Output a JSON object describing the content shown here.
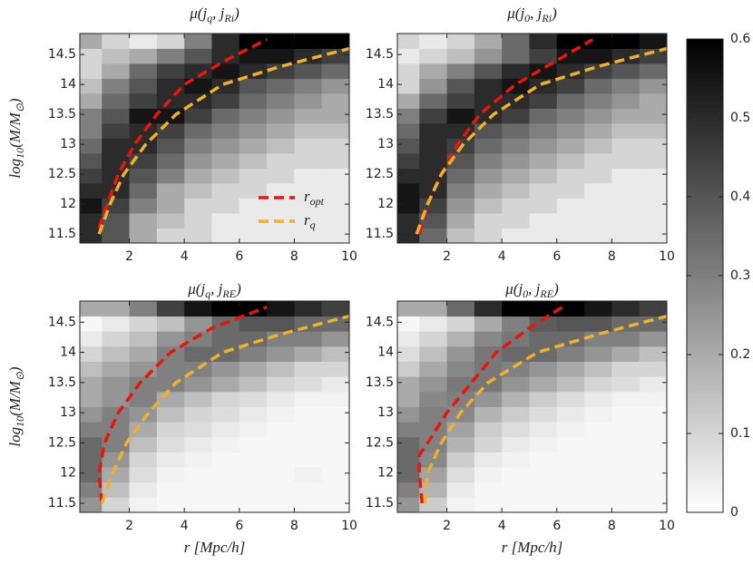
{
  "chart_data": [
    {
      "type": "heatmap",
      "title_parts": [
        "μ(j",
        "q",
        ", j",
        "Ri",
        ")"
      ],
      "ylabel_parts": [
        "log",
        "10",
        "(M/M",
        "⊙",
        ")"
      ],
      "xbins": [
        0.2,
        1,
        2,
        3,
        4,
        5,
        6,
        7,
        8,
        9,
        10
      ],
      "ybins": [
        11.35,
        11.6,
        11.85,
        12.1,
        12.35,
        12.6,
        12.85,
        13.1,
        13.35,
        13.6,
        13.85,
        14.1,
        14.35,
        14.6,
        14.85
      ],
      "z": [
        [
          0.5,
          0.4,
          0.2,
          0.1,
          0.1,
          0.05,
          0.05,
          0.05,
          0.05,
          0.05
        ],
        [
          0.5,
          0.4,
          0.2,
          0.15,
          0.1,
          0.05,
          0.05,
          0.05,
          0.05,
          0.05
        ],
        [
          0.55,
          0.45,
          0.3,
          0.2,
          0.1,
          0.1,
          0.05,
          0.05,
          0.05,
          0.05
        ],
        [
          0.5,
          0.5,
          0.35,
          0.2,
          0.15,
          0.1,
          0.1,
          0.05,
          0.05,
          0.05
        ],
        [
          0.45,
          0.5,
          0.4,
          0.3,
          0.2,
          0.15,
          0.1,
          0.1,
          0.05,
          0.05
        ],
        [
          0.4,
          0.5,
          0.45,
          0.35,
          0.25,
          0.2,
          0.15,
          0.1,
          0.1,
          0.1
        ],
        [
          0.35,
          0.5,
          0.5,
          0.4,
          0.3,
          0.25,
          0.2,
          0.15,
          0.1,
          0.1
        ],
        [
          0.3,
          0.45,
          0.5,
          0.45,
          0.35,
          0.3,
          0.25,
          0.2,
          0.15,
          0.15
        ],
        [
          0.3,
          0.4,
          0.55,
          0.55,
          0.45,
          0.35,
          0.3,
          0.25,
          0.2,
          0.2
        ],
        [
          0.2,
          0.35,
          0.45,
          0.5,
          0.5,
          0.45,
          0.35,
          0.3,
          0.25,
          0.2
        ],
        [
          0.15,
          0.3,
          0.4,
          0.5,
          0.55,
          0.5,
          0.4,
          0.35,
          0.3,
          0.25
        ],
        [
          0.1,
          0.2,
          0.35,
          0.45,
          0.5,
          0.55,
          0.5,
          0.45,
          0.4,
          0.35
        ],
        [
          0.1,
          0.15,
          0.2,
          0.3,
          0.4,
          0.5,
          0.55,
          0.55,
          0.5,
          0.45
        ],
        [
          0.2,
          0.1,
          0.05,
          0.1,
          0.3,
          0.5,
          0.6,
          0.6,
          0.6,
          0.6
        ]
      ],
      "series": [
        {
          "name": "r",
          "subscript": "opt",
          "color": "#e8160c",
          "x": [
            0.9,
            1.2,
            1.6,
            2.2,
            3,
            4,
            5.5,
            7
          ],
          "y": [
            11.6,
            12,
            12.5,
            13,
            13.5,
            14,
            14.4,
            14.75
          ]
        },
        {
          "name": "r",
          "subscript": "q",
          "color": "#efb02c",
          "x": [
            0.9,
            1.3,
            1.8,
            2.6,
            3.7,
            5.4,
            7.5,
            10
          ],
          "y": [
            11.5,
            12,
            12.5,
            13,
            13.5,
            14,
            14.3,
            14.6
          ]
        }
      ],
      "legend": "lower right",
      "xlim": [
        0.2,
        10
      ],
      "ylim": [
        11.35,
        14.85
      ],
      "xticks": [
        2,
        4,
        6,
        8,
        10
      ],
      "yticks": [
        11.5,
        12,
        12.5,
        13,
        13.5,
        14,
        14.5
      ]
    },
    {
      "type": "heatmap",
      "title_parts": [
        "μ(j",
        "0",
        ", j",
        "Ri",
        ")"
      ],
      "xbins": [
        0.2,
        1,
        2,
        3,
        4,
        5,
        6,
        7,
        8,
        9,
        10
      ],
      "ybins": [
        11.35,
        11.6,
        11.85,
        12.1,
        12.35,
        12.6,
        12.85,
        13.1,
        13.35,
        13.6,
        13.85,
        14.1,
        14.35,
        14.6,
        14.85
      ],
      "z": [
        [
          0.5,
          0.35,
          0.15,
          0.1,
          0.05,
          0.05,
          0.05,
          0.05,
          0.05,
          0.05
        ],
        [
          0.5,
          0.4,
          0.2,
          0.1,
          0.1,
          0.05,
          0.05,
          0.05,
          0.05,
          0.05
        ],
        [
          0.55,
          0.45,
          0.25,
          0.15,
          0.1,
          0.1,
          0.05,
          0.05,
          0.05,
          0.05
        ],
        [
          0.55,
          0.5,
          0.3,
          0.2,
          0.15,
          0.1,
          0.1,
          0.05,
          0.05,
          0.05
        ],
        [
          0.5,
          0.5,
          0.35,
          0.25,
          0.2,
          0.15,
          0.1,
          0.1,
          0.05,
          0.05
        ],
        [
          0.45,
          0.5,
          0.4,
          0.3,
          0.25,
          0.2,
          0.15,
          0.1,
          0.1,
          0.1
        ],
        [
          0.4,
          0.5,
          0.45,
          0.35,
          0.3,
          0.25,
          0.2,
          0.15,
          0.1,
          0.1
        ],
        [
          0.35,
          0.5,
          0.5,
          0.4,
          0.35,
          0.3,
          0.25,
          0.2,
          0.15,
          0.15
        ],
        [
          0.3,
          0.45,
          0.55,
          0.5,
          0.45,
          0.35,
          0.3,
          0.25,
          0.2,
          0.2
        ],
        [
          0.2,
          0.35,
          0.45,
          0.5,
          0.5,
          0.45,
          0.35,
          0.3,
          0.25,
          0.2
        ],
        [
          0.1,
          0.25,
          0.4,
          0.5,
          0.55,
          0.5,
          0.45,
          0.35,
          0.3,
          0.25
        ],
        [
          0.1,
          0.2,
          0.3,
          0.4,
          0.5,
          0.55,
          0.5,
          0.45,
          0.4,
          0.35
        ],
        [
          0.05,
          0.1,
          0.15,
          0.25,
          0.35,
          0.45,
          0.55,
          0.55,
          0.5,
          0.45
        ],
        [
          0.1,
          0.05,
          0.1,
          0.2,
          0.35,
          0.5,
          0.6,
          0.6,
          0.6,
          0.55
        ]
      ],
      "series": [
        {
          "color": "#e8160c",
          "x": [
            1,
            1.3,
            1.8,
            2.4,
            3.2,
            4.5,
            6,
            7.3
          ],
          "y": [
            11.5,
            12,
            12.5,
            13,
            13.5,
            14,
            14.4,
            14.75
          ]
        },
        {
          "color": "#efb02c",
          "x": [
            0.9,
            1.3,
            1.8,
            2.6,
            3.7,
            5.4,
            7.5,
            10
          ],
          "y": [
            11.5,
            12,
            12.5,
            13,
            13.5,
            14,
            14.3,
            14.6
          ]
        }
      ],
      "xlim": [
        0.2,
        10
      ],
      "ylim": [
        11.35,
        14.85
      ],
      "xticks": [
        2,
        4,
        6,
        8,
        10
      ],
      "yticks": [
        11.5,
        12,
        12.5,
        13,
        13.5,
        14,
        14.5
      ]
    },
    {
      "type": "heatmap",
      "title_parts": [
        "μ(j",
        "q",
        ", j",
        "RE",
        ")"
      ],
      "ylabel_parts": [
        "log",
        "10",
        "(M/M",
        "⊙",
        ")"
      ],
      "xlabel": "r [Mpc/h]",
      "xbins": [
        0.2,
        1,
        2,
        3,
        4,
        5,
        6,
        7,
        8,
        9,
        10
      ],
      "ybins": [
        11.35,
        11.6,
        11.85,
        12.1,
        12.35,
        12.6,
        12.85,
        13.1,
        13.35,
        13.6,
        13.85,
        14.1,
        14.35,
        14.6,
        14.85
      ],
      "z": [
        [
          0.25,
          0.1,
          0.03,
          0.02,
          0.02,
          0.02,
          0.02,
          0.02,
          0.02,
          0.02
        ],
        [
          0.3,
          0.15,
          0.05,
          0.02,
          0.02,
          0.02,
          0.02,
          0.02,
          0.02,
          0.02
        ],
        [
          0.35,
          0.2,
          0.08,
          0.03,
          0.02,
          0.02,
          0.02,
          0.02,
          0.03,
          0.02
        ],
        [
          0.35,
          0.25,
          0.1,
          0.05,
          0.03,
          0.02,
          0.02,
          0.02,
          0.02,
          0.02
        ],
        [
          0.35,
          0.3,
          0.15,
          0.08,
          0.05,
          0.03,
          0.02,
          0.02,
          0.02,
          0.02
        ],
        [
          0.3,
          0.3,
          0.2,
          0.1,
          0.08,
          0.05,
          0.03,
          0.02,
          0.02,
          0.02
        ],
        [
          0.25,
          0.3,
          0.25,
          0.15,
          0.1,
          0.08,
          0.05,
          0.03,
          0.02,
          0.02
        ],
        [
          0.2,
          0.25,
          0.3,
          0.2,
          0.15,
          0.1,
          0.08,
          0.05,
          0.03,
          0.03
        ],
        [
          0.2,
          0.25,
          0.3,
          0.3,
          0.25,
          0.2,
          0.15,
          0.1,
          0.08,
          0.05
        ],
        [
          0.15,
          0.2,
          0.25,
          0.3,
          0.3,
          0.25,
          0.2,
          0.15,
          0.1,
          0.1
        ],
        [
          0.1,
          0.15,
          0.2,
          0.3,
          0.35,
          0.35,
          0.3,
          0.25,
          0.2,
          0.15
        ],
        [
          0.05,
          0.1,
          0.15,
          0.25,
          0.3,
          0.35,
          0.35,
          0.3,
          0.3,
          0.25
        ],
        [
          0.02,
          0.05,
          0.1,
          0.15,
          0.25,
          0.35,
          0.4,
          0.4,
          0.35,
          0.35
        ],
        [
          0.2,
          0.2,
          0.3,
          0.45,
          0.55,
          0.6,
          0.6,
          0.55,
          0.5,
          0.45
        ]
      ],
      "series": [
        {
          "color": "#e8160c",
          "x": [
            1,
            0.9,
            1.1,
            1.6,
            2.4,
            3.5,
            5,
            7
          ],
          "y": [
            11.5,
            12,
            12.5,
            13,
            13.5,
            14,
            14.4,
            14.75
          ]
        },
        {
          "color": "#efb02c",
          "x": [
            1,
            1.4,
            1.9,
            2.7,
            3.7,
            5.4,
            7.5,
            10
          ],
          "y": [
            11.5,
            12,
            12.5,
            13,
            13.5,
            14,
            14.3,
            14.6
          ]
        }
      ],
      "xlim": [
        0.2,
        10
      ],
      "ylim": [
        11.35,
        14.85
      ],
      "xticks": [
        2,
        4,
        6,
        8,
        10
      ],
      "yticks": [
        11.5,
        12,
        12.5,
        13,
        13.5,
        14,
        14.5
      ]
    },
    {
      "type": "heatmap",
      "title_parts": [
        "μ(j",
        "0",
        ", j",
        "RE",
        ")"
      ],
      "xlabel": "r [Mpc/h]",
      "xbins": [
        0.2,
        1,
        2,
        3,
        4,
        5,
        6,
        7,
        8,
        9,
        10
      ],
      "ybins": [
        11.35,
        11.6,
        11.85,
        12.1,
        12.35,
        12.6,
        12.85,
        13.1,
        13.35,
        13.6,
        13.85,
        14.1,
        14.35,
        14.6,
        14.85
      ],
      "z": [
        [
          0.25,
          0.12,
          0.03,
          0.02,
          0.02,
          0.02,
          0.02,
          0.02,
          0.02,
          0.02
        ],
        [
          0.3,
          0.18,
          0.05,
          0.02,
          0.02,
          0.02,
          0.02,
          0.02,
          0.02,
          0.02
        ],
        [
          0.35,
          0.22,
          0.08,
          0.03,
          0.02,
          0.02,
          0.02,
          0.02,
          0.02,
          0.02
        ],
        [
          0.35,
          0.28,
          0.12,
          0.05,
          0.03,
          0.02,
          0.02,
          0.02,
          0.02,
          0.02
        ],
        [
          0.35,
          0.3,
          0.18,
          0.1,
          0.05,
          0.03,
          0.02,
          0.02,
          0.02,
          0.02
        ],
        [
          0.3,
          0.3,
          0.22,
          0.12,
          0.08,
          0.05,
          0.03,
          0.02,
          0.02,
          0.02
        ],
        [
          0.25,
          0.3,
          0.28,
          0.18,
          0.12,
          0.08,
          0.05,
          0.03,
          0.02,
          0.02
        ],
        [
          0.2,
          0.28,
          0.3,
          0.25,
          0.18,
          0.12,
          0.08,
          0.05,
          0.03,
          0.03
        ],
        [
          0.2,
          0.25,
          0.32,
          0.32,
          0.25,
          0.2,
          0.15,
          0.1,
          0.08,
          0.05
        ],
        [
          0.12,
          0.2,
          0.28,
          0.32,
          0.3,
          0.25,
          0.2,
          0.15,
          0.1,
          0.1
        ],
        [
          0.08,
          0.15,
          0.25,
          0.32,
          0.35,
          0.35,
          0.3,
          0.25,
          0.2,
          0.15
        ],
        [
          0.05,
          0.1,
          0.18,
          0.28,
          0.32,
          0.35,
          0.35,
          0.3,
          0.3,
          0.25
        ],
        [
          0.02,
          0.05,
          0.1,
          0.2,
          0.3,
          0.38,
          0.4,
          0.4,
          0.35,
          0.35
        ],
        [
          0.2,
          0.2,
          0.35,
          0.5,
          0.6,
          0.6,
          0.6,
          0.55,
          0.5,
          0.45
        ]
      ],
      "series": [
        {
          "color": "#e8160c",
          "x": [
            1.1,
            1,
            1,
            1.3,
            2,
            2.9,
            3.8,
            5,
            6.2
          ],
          "y": [
            11.5,
            12,
            12.3,
            12.5,
            13,
            13.5,
            14,
            14.4,
            14.75
          ]
        },
        {
          "color": "#efb02c",
          "x": [
            1.2,
            1.3,
            1.8,
            2.5,
            3.5,
            5.3,
            7.5,
            10
          ],
          "y": [
            11.5,
            12,
            12.5,
            13,
            13.5,
            14,
            14.3,
            14.6
          ]
        }
      ],
      "xlim": [
        0.2,
        10
      ],
      "ylim": [
        11.35,
        14.85
      ],
      "xticks": [
        2,
        4,
        6,
        8,
        10
      ],
      "yticks": [
        11.5,
        12,
        12.5,
        13,
        13.5,
        14,
        14.5
      ]
    },
    {
      "type": "colorbar",
      "lim": [
        0,
        0.6
      ],
      "ticks": [
        0,
        0.1,
        0.2,
        0.3,
        0.4,
        0.5,
        0.6
      ],
      "colormap": {
        "low": "#ffffff",
        "high": "#000000"
      }
    }
  ]
}
